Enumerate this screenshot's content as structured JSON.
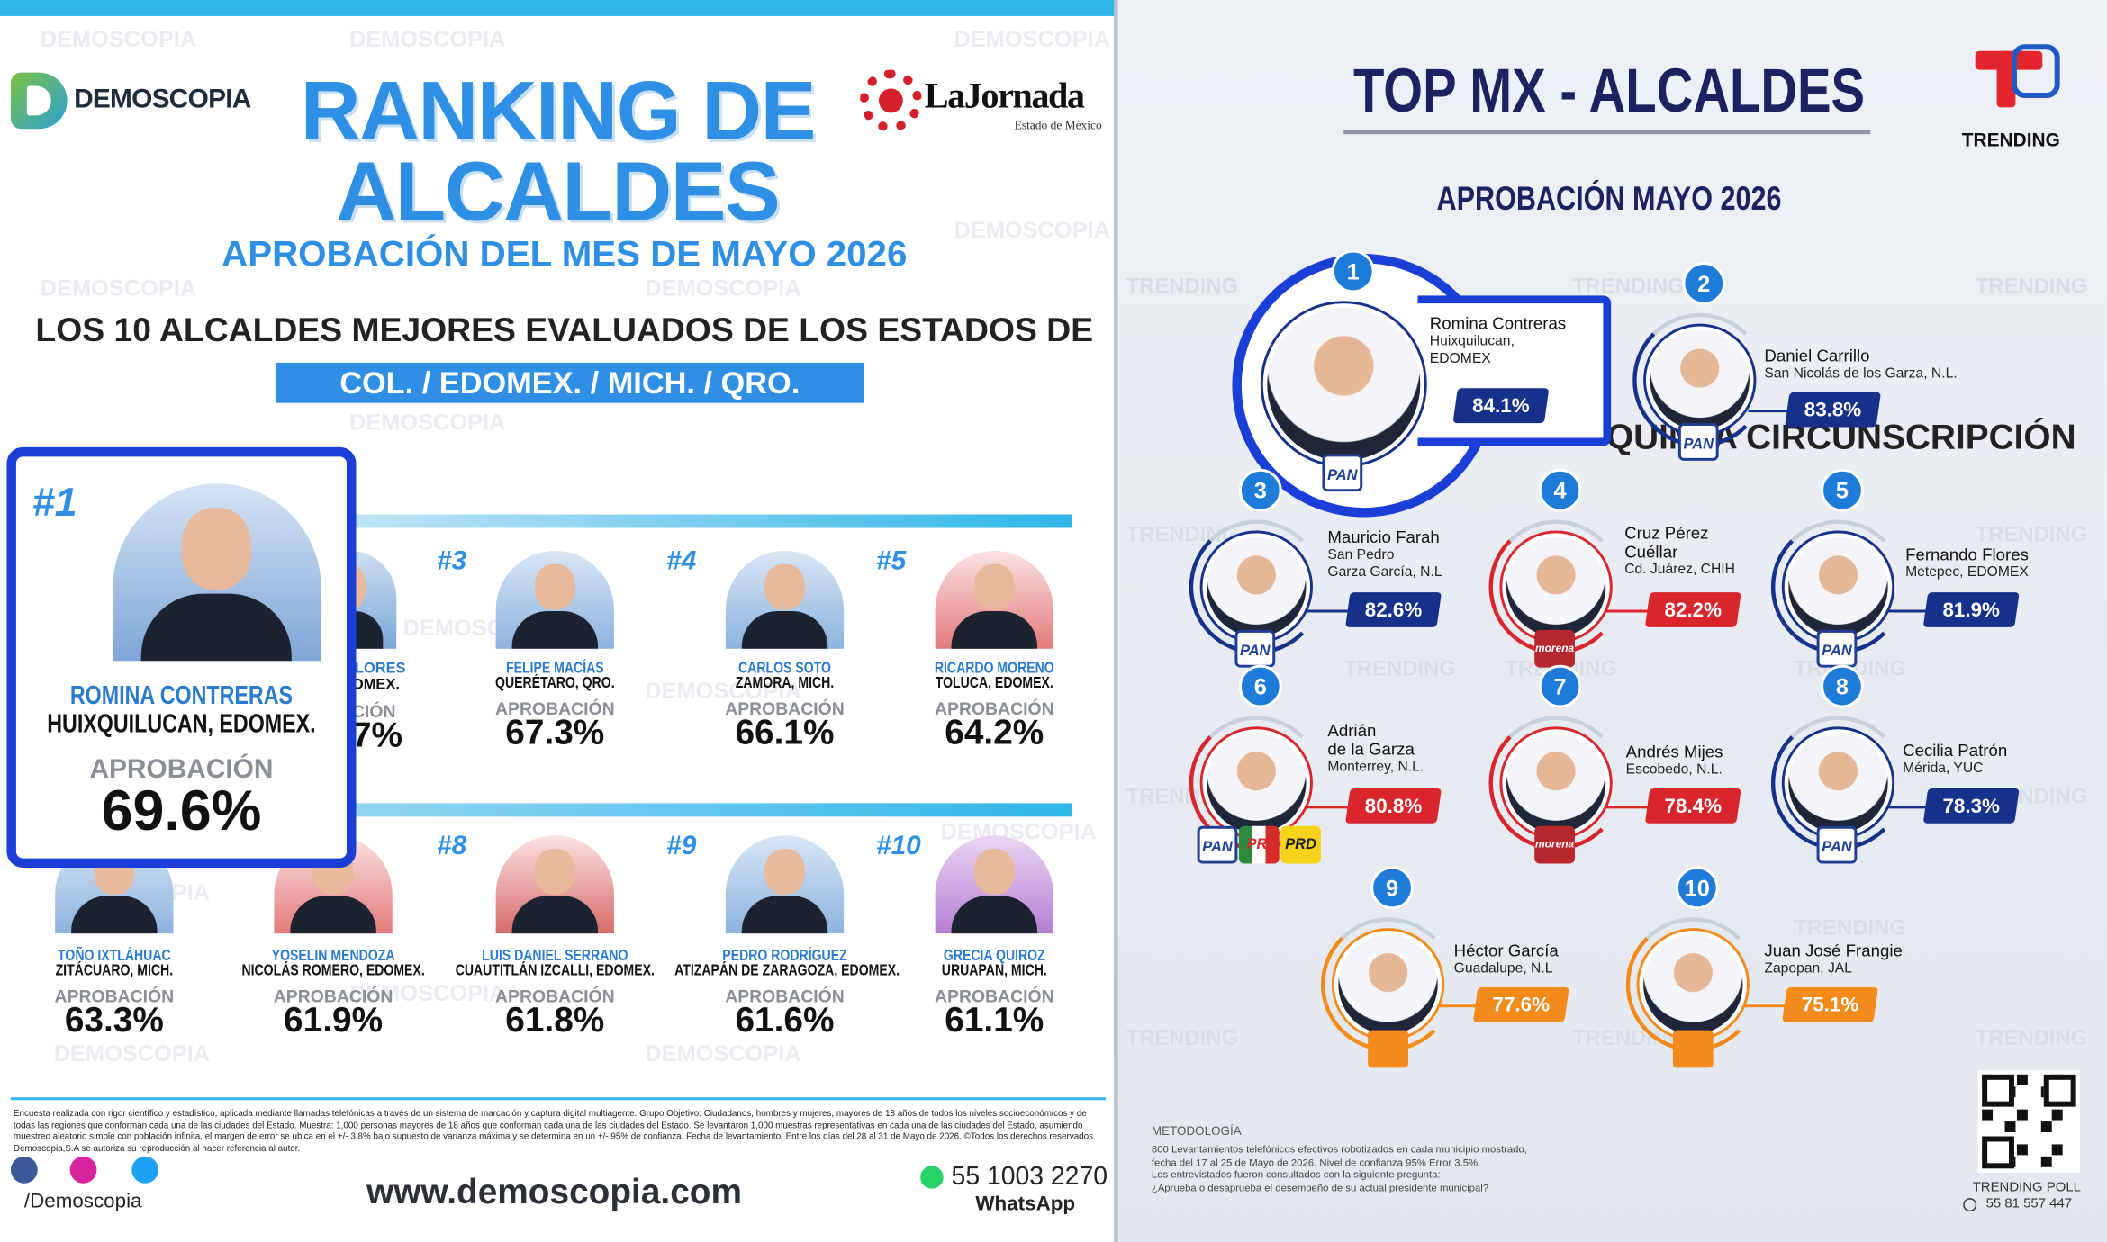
{
  "left": {
    "logo": "DEMOSCOPIA",
    "partner": "LaJornada",
    "partner_sub": "Estado de México",
    "title": [
      "RANKING DE",
      "ALCALDES"
    ],
    "subtitle": "APROBACIÓN DEL MES DE MAYO 2026",
    "heading": "LOS 10 ALCALDES MEJORES EVALUADOS DE LOS ESTADOS DE",
    "states": "COL. / EDOMEX. / MICH. / QRO.",
    "region": "QUINTA CIRCUNSCRIPCIÓN",
    "approval_label": "APROBACIÓN",
    "top": {
      "rank": "#1",
      "name": "ROMINA CONTRERAS",
      "place": "HUIXQUILUCAN, EDOMEX.",
      "approval": "69.6%"
    },
    "partial": {
      "name": "LORES",
      "place": "OMEX.",
      "label": "CIÓN",
      "approval": "7%"
    },
    "ranking": [
      {
        "rank": "#3",
        "name": "FELIPE MACÍAS",
        "place": "QUERÉTARO, QRO.",
        "approval": "67.3%"
      },
      {
        "rank": "#4",
        "name": "CARLOS SOTO",
        "place": "ZAMORA, MICH.",
        "approval": "66.1%"
      },
      {
        "rank": "#5",
        "name": "RICARDO MORENO",
        "place": "TOLUCA, EDOMEX.",
        "approval": "64.2%"
      },
      {
        "name": "TOÑO IXTLÁHUAC",
        "place": "ZITÁCUARO, MICH.",
        "approval": "63.3%"
      },
      {
        "name": "YOSELIN MENDOZA",
        "place": "NICOLÁS ROMERO, EDOMEX.",
        "approval": "61.9%"
      },
      {
        "rank": "#8",
        "name": "LUIS DANIEL SERRANO",
        "place": "CUAUTITLÁN IZCALLI, EDOMEX.",
        "approval": "61.8%"
      },
      {
        "rank": "#9",
        "name": "PEDRO RODRÍGUEZ",
        "place": "ATIZAPÁN DE ZARAGOZA, EDOMEX.",
        "approval": "61.6%"
      },
      {
        "rank": "#10",
        "name": "GRECIA QUIROZ",
        "place": "URUAPAN, MICH.",
        "approval": "61.1%"
      }
    ],
    "disclaimer": "Encuesta realizada con rigor científico y estadístico, aplicada mediante llamadas telefónicas a través de un sistema de marcación y captura digital multiagente. Grupo Objetivo: Ciudadanos, hombres y mujeres, mayores de 18 años de todos los niveles socioeconómicos y de todas las regiones que conforman cada una de las ciudades del Estado. Muestra: 1,000 personas mayores de 18 años que conforman cada una de las ciudades del Estado. Se levantaron 1,000 muestras representativas en cada una de las ciudades del Estado, asumiendo muestreo aleatorio simple con población infinita, el margen de error se ubica en el +/- 3.8% bajo supuesto de varianza máxima y se determina en un +/- 95% de confianza. Fecha de levantamiento: Entre los días del 28 al 31 de Mayo de 2026. ©Todos los derechos reservados Demoscopia,S.A se autoriza su reproducción al hacer referencia al autor.",
    "social": "/Demoscopia",
    "website": "www.demoscopia.com",
    "phone": "55 1003 2270",
    "whatsapp": "WhatsApp"
  },
  "right": {
    "title": "TOP MX - ALCALDES",
    "brand": "TRENDING",
    "subtitle": "APROBACIÓN MAYO 2026",
    "ranking": [
      {
        "rank": "1",
        "name": [
          "Romina Contreras"
        ],
        "place": [
          "Huixquilucan,",
          "EDOMEX"
        ],
        "approval": "84.1%",
        "color": "#16318a",
        "parties": [
          "PAN"
        ]
      },
      {
        "rank": "2",
        "name": [
          "Daniel Carrillo"
        ],
        "place": [
          "San Nicolás de los Garza, N.L."
        ],
        "approval": "83.8%",
        "color": "#16318a",
        "parties": [
          "PAN"
        ]
      },
      {
        "rank": "3",
        "name": [
          "Mauricio Farah"
        ],
        "place": [
          "San Pedro",
          "Garza García, N.L"
        ],
        "approval": "82.6%",
        "color": "#16318a",
        "parties": [
          "PAN"
        ]
      },
      {
        "rank": "4",
        "name": [
          "Cruz Pérez",
          "Cuéllar"
        ],
        "place": [
          "Cd. Juárez, CHIH"
        ],
        "approval": "82.2%",
        "color": "#d8262c",
        "parties": [
          "morena"
        ]
      },
      {
        "rank": "5",
        "name": [
          "Fernando Flores"
        ],
        "place": [
          "Metepec, EDOMEX"
        ],
        "approval": "81.9%",
        "color": "#16318a",
        "parties": [
          "PAN"
        ]
      },
      {
        "rank": "6",
        "name": [
          "Adrián",
          "de la Garza"
        ],
        "place": [
          "Monterrey, N.L."
        ],
        "approval": "80.8%",
        "color": "#d8262c",
        "parties": [
          "PAN",
          "PRI",
          "PRD"
        ]
      },
      {
        "rank": "7",
        "name": [
          "Andrés Mijes"
        ],
        "place": [
          "Escobedo, N.L."
        ],
        "approval": "78.4%",
        "color": "#d8262c",
        "parties": [
          "morena"
        ]
      },
      {
        "rank": "8",
        "name": [
          "Cecilia Patrón"
        ],
        "place": [
          "Mérida, YUC"
        ],
        "approval": "78.3%",
        "color": "#16318a",
        "parties": [
          "PAN"
        ]
      },
      {
        "rank": "9",
        "name": [
          "Héctor García"
        ],
        "place": [
          "Guadalupe, N.L"
        ],
        "approval": "77.6%",
        "color": "#f28a1c"
      },
      {
        "rank": "10",
        "name": [
          "Juan José Frangie"
        ],
        "place": [
          "Zapopan, JAL"
        ],
        "approval": "75.1%",
        "color": "#f28a1c"
      }
    ],
    "methodology_label": "METODOLOGÍA",
    "methodology": [
      "800 Levantamientos telefónicos efectivos robotizados en cada municipio mostrado,",
      "fecha del 17  al 25 de Mayo de 2026. Nivel de confianza 95% Error 3.5%.",
      "Los entrevistados fueron consultados con la siguiente pregunta:",
      "¿Aprueba o desaprueba el desempeño de su actual presidente municipal?"
    ],
    "footer": "TRENDING POLL",
    "phone": "55 81 557 447"
  }
}
